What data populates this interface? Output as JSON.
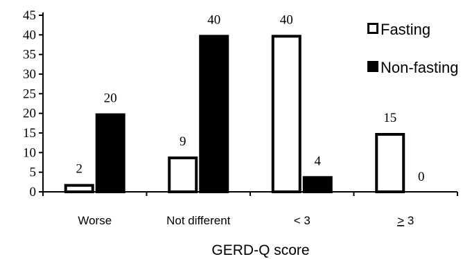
{
  "chart_data": {
    "type": "bar",
    "title": "",
    "xlabel": "GERD-Q score",
    "ylabel": "",
    "categories": [
      "Worse",
      "Not different",
      "< 3",
      "> 3"
    ],
    "series": [
      {
        "name": "Fasting",
        "values": [
          2,
          9,
          40,
          15
        ],
        "fill": "#ffffff",
        "stroke": "#000000"
      },
      {
        "name": "Non-fasting",
        "values": [
          20,
          40,
          4,
          0
        ],
        "fill": "#000000",
        "stroke": "#000000"
      }
    ],
    "ylim": [
      0,
      45
    ],
    "yticks": [
      0,
      5,
      10,
      15,
      20,
      25,
      30,
      35,
      40,
      45
    ],
    "grid": false,
    "legend": "top-right"
  }
}
